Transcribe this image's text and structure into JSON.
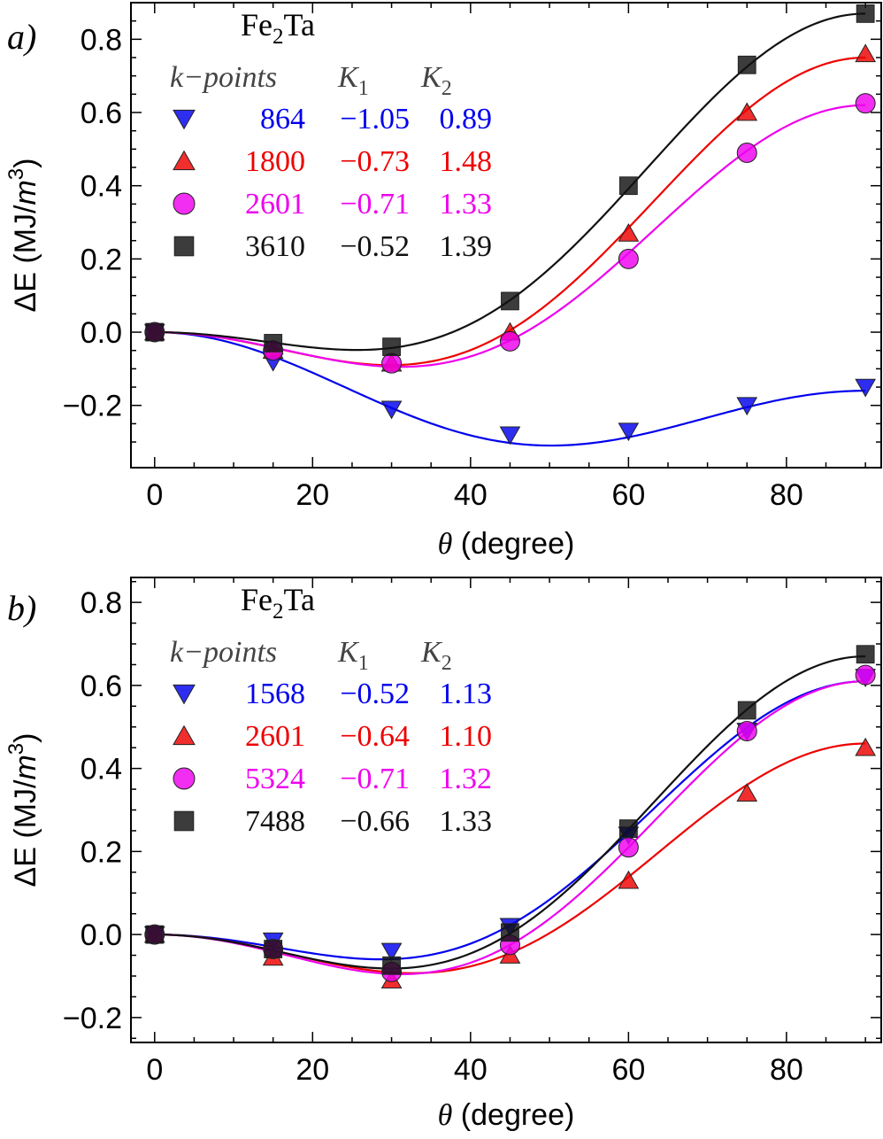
{
  "chart_data": [
    {
      "type": "line",
      "panel_label": "a)",
      "title_main": "Fe",
      "title_sub": "2",
      "title_tail": "Ta",
      "xlabel_symbol": "θ",
      "xlabel_rest": " (degree)",
      "ylabel_prefix": "ΔE (MJ/",
      "ylabel_m": "m",
      "ylabel_exp": "3",
      "ylabel_suffix": ")",
      "xlim": [
        -3,
        92
      ],
      "ylim": [
        -0.37,
        0.9
      ],
      "xticks": [
        0,
        20,
        40,
        60,
        80
      ],
      "xtick_labels": [
        "0",
        "20",
        "40",
        "60",
        "80"
      ],
      "yticks": [
        -0.2,
        0.0,
        0.2,
        0.4,
        0.6,
        0.8
      ],
      "ytick_labels": [
        "−0.2",
        "0.0",
        "0.2",
        "0.4",
        "0.6",
        "0.8"
      ],
      "legend_headers": {
        "kpoints": "k−points",
        "k1_main": "K",
        "k1_sub": "1",
        "k2_main": "K",
        "k2_sub": "2"
      },
      "x": [
        0,
        15,
        30,
        45,
        60,
        75,
        90
      ],
      "series": [
        {
          "name": "864",
          "k1": "−1.05",
          "k2": "0.89",
          "color": "#0000ee",
          "marker": "triangle-down",
          "values": [
            0.0,
            -0.08,
            -0.21,
            -0.28,
            -0.27,
            -0.2,
            -0.15
          ]
        },
        {
          "name": "1800",
          "k1": "−0.73",
          "k2": "1.48",
          "color": "#ee0000",
          "marker": "triangle-up",
          "values": [
            0.0,
            -0.05,
            -0.085,
            0.0,
            0.27,
            0.6,
            0.76
          ]
        },
        {
          "name": "2601",
          "k1": "−0.71",
          "k2": "1.33",
          "color": "#ee00ee",
          "marker": "circle",
          "values": [
            0.0,
            -0.05,
            -0.085,
            -0.025,
            0.2,
            0.49,
            0.625
          ]
        },
        {
          "name": "3610",
          "k1": "−0.52",
          "k2": "1.39",
          "color": "#111111",
          "marker": "square",
          "values": [
            0.0,
            -0.03,
            -0.04,
            0.085,
            0.4,
            0.73,
            0.87
          ]
        }
      ],
      "fits": [
        {
          "name": "864",
          "k1": -1.05,
          "k2": 0.89,
          "color": "#0000ee"
        },
        {
          "name": "1800",
          "k1": -0.73,
          "k2": 1.48,
          "color": "#ee0000"
        },
        {
          "name": "2601",
          "k1": -0.71,
          "k2": 1.33,
          "color": "#ee00ee"
        },
        {
          "name": "3610",
          "k1": -0.52,
          "k2": 1.39,
          "color": "#111111"
        }
      ]
    },
    {
      "type": "line",
      "panel_label": "b)",
      "title_main": "Fe",
      "title_sub": "2",
      "title_tail": "Ta",
      "xlabel_symbol": "θ",
      "xlabel_rest": " (degree)",
      "ylabel_prefix": "ΔE (MJ/",
      "ylabel_m": "m",
      "ylabel_exp": "3",
      "ylabel_suffix": ")",
      "xlim": [
        -3,
        92
      ],
      "ylim": [
        -0.26,
        0.86
      ],
      "xticks": [
        0,
        20,
        40,
        60,
        80
      ],
      "xtick_labels": [
        "0",
        "20",
        "40",
        "60",
        "80"
      ],
      "yticks": [
        -0.2,
        0.0,
        0.2,
        0.4,
        0.6,
        0.8
      ],
      "ytick_labels": [
        "−0.2",
        "0.0",
        "0.2",
        "0.4",
        "0.6",
        "0.8"
      ],
      "legend_headers": {
        "kpoints": "k−points",
        "k1_main": "K",
        "k1_sub": "1",
        "k2_main": "K",
        "k2_sub": "2"
      },
      "x": [
        0,
        15,
        30,
        45,
        60,
        75,
        90
      ],
      "series": [
        {
          "name": "1568",
          "k1": "−0.52",
          "k2": "1.13",
          "color": "#0000ee",
          "marker": "triangle-down",
          "values": [
            0.0,
            -0.015,
            -0.04,
            0.02,
            0.24,
            0.49,
            0.62
          ]
        },
        {
          "name": "2601",
          "k1": "−0.64",
          "k2": "1.10",
          "color": "#ee0000",
          "marker": "triangle-up",
          "values": [
            0.0,
            -0.055,
            -0.11,
            -0.05,
            0.13,
            0.34,
            0.45
          ]
        },
        {
          "name": "5324",
          "k1": "−0.71",
          "k2": "1.32",
          "color": "#ee00ee",
          "marker": "circle",
          "values": [
            0.0,
            -0.035,
            -0.09,
            -0.025,
            0.21,
            0.49,
            0.625
          ]
        },
        {
          "name": "7488",
          "k1": "−0.66",
          "k2": "1.33",
          "color": "#111111",
          "marker": "square",
          "values": [
            0.0,
            -0.035,
            -0.075,
            0.005,
            0.255,
            0.54,
            0.675
          ]
        }
      ],
      "fits": [
        {
          "name": "1568",
          "k1": -0.52,
          "k2": 1.13,
          "color": "#0000ee"
        },
        {
          "name": "2601",
          "k1": -0.64,
          "k2": 1.1,
          "color": "#ee0000"
        },
        {
          "name": "5324",
          "k1": -0.71,
          "k2": 1.32,
          "color": "#ee00ee"
        },
        {
          "name": "7488",
          "k1": -0.66,
          "k2": 1.33,
          "color": "#111111"
        }
      ]
    }
  ]
}
